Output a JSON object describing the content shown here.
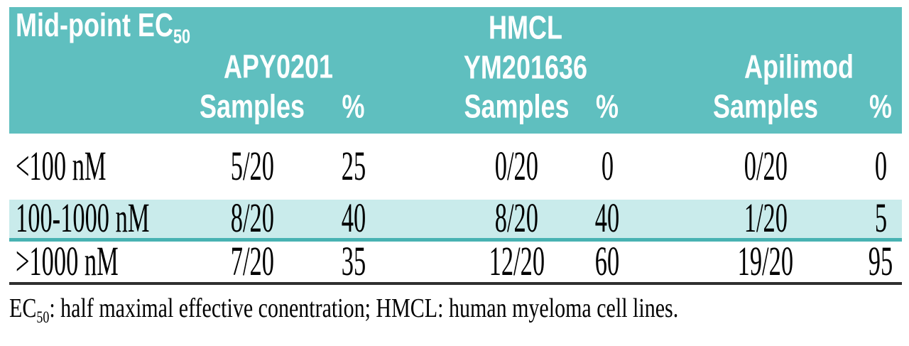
{
  "colors": {
    "header_background": "#5fbfbf",
    "header_text": "#ffffff",
    "highlight_row_background": "#c9ebeb",
    "teal_divider": "#48b2b2",
    "dark_divider": "#2f2f2f",
    "body_text": "#000000"
  },
  "header": {
    "corner": {
      "text": "Mid-point EC",
      "sub": "50"
    },
    "group_apy": "APY0201",
    "group_hmcl_line1": "HMCL",
    "group_hmcl_line2": "YM201636",
    "group_apilimod": "Apilimod",
    "samples_label": "Samples",
    "pct_label": "%"
  },
  "rows": [
    {
      "label": "<100 nM",
      "apy_samples": "5/20",
      "apy_pct": "25",
      "ym_samples": "0/20",
      "ym_pct": "0",
      "api_samples": "0/20",
      "api_pct": "0",
      "highlighted": false
    },
    {
      "label": "100-1000 nM",
      "apy_samples": "8/20",
      "apy_pct": "40",
      "ym_samples": "8/20",
      "ym_pct": "40",
      "api_samples": "1/20",
      "api_pct": "5",
      "highlighted": true
    },
    {
      "label": ">1000 nM",
      "apy_samples": "7/20",
      "apy_pct": "35",
      "ym_samples": "12/20",
      "ym_pct": "60",
      "api_samples": "19/20",
      "api_pct": "95",
      "highlighted": false
    }
  ],
  "footnote": {
    "prefix": "EC",
    "sub": "50",
    "rest": ": half maximal effective conentration; HMCL: human myeloma cell lines."
  }
}
